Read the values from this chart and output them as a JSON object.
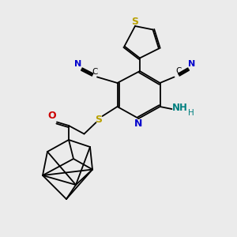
{
  "background_color": "#ebebeb",
  "figsize": [
    3.0,
    3.0
  ],
  "dpi": 100,
  "bond_color": "#000000",
  "sulfur_color": "#b8a000",
  "nitrogen_color": "#0000cc",
  "oxygen_color": "#cc0000",
  "amino_color": "#008080",
  "bond_width": 1.3,
  "xlim": [
    0,
    10
  ],
  "ylim": [
    0,
    10
  ]
}
